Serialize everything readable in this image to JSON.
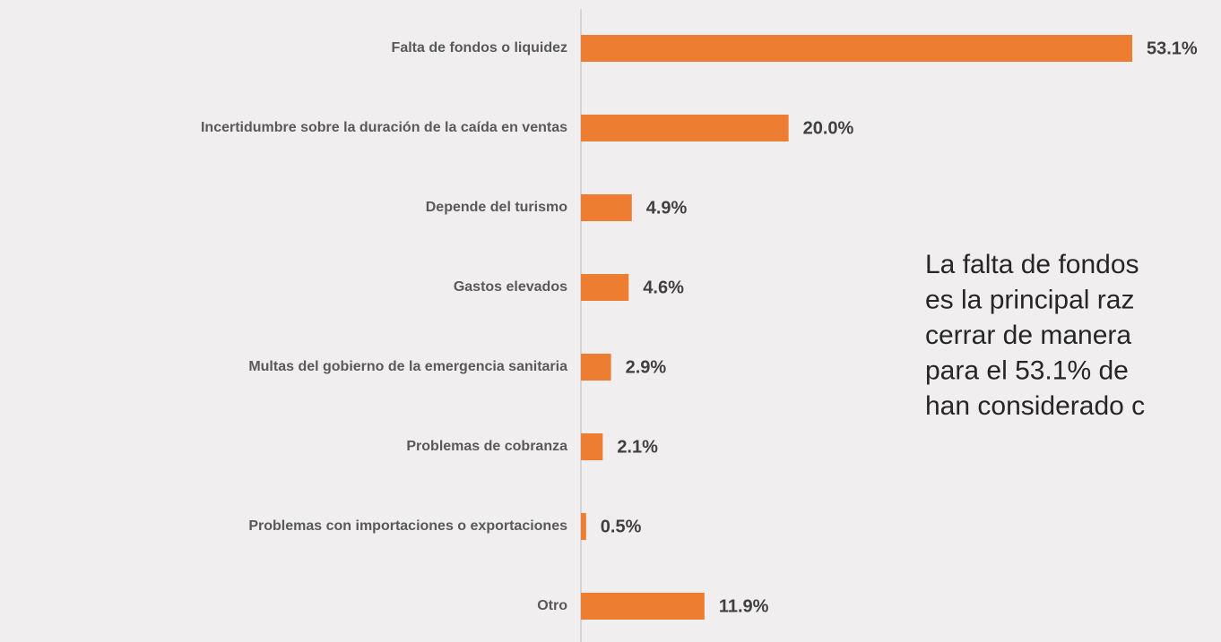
{
  "chart_data": {
    "type": "bar",
    "orientation": "horizontal",
    "categories": [
      "Falta de fondos o liquidez",
      "Incertidumbre sobre la duración de la caída en ventas",
      "Depende del turismo",
      "Gastos elevados",
      "Multas del gobierno de la emergencia sanitaria",
      "Problemas de cobranza",
      "Problemas con importaciones o exportaciones",
      "Otro"
    ],
    "values": [
      53.1,
      20.0,
      4.9,
      4.6,
      2.9,
      2.1,
      0.5,
      11.9
    ],
    "value_labels": [
      "53.1%",
      "20.0%",
      "4.9%",
      "4.6%",
      "2.9%",
      "2.1%",
      "0.5%",
      "11.9%"
    ],
    "color": "#ed7d31",
    "annotation": [
      "La falta de fondos",
      "es la principal raz",
      "cerrar de manera",
      "para el 53.1% de",
      "han considerado c"
    ]
  }
}
